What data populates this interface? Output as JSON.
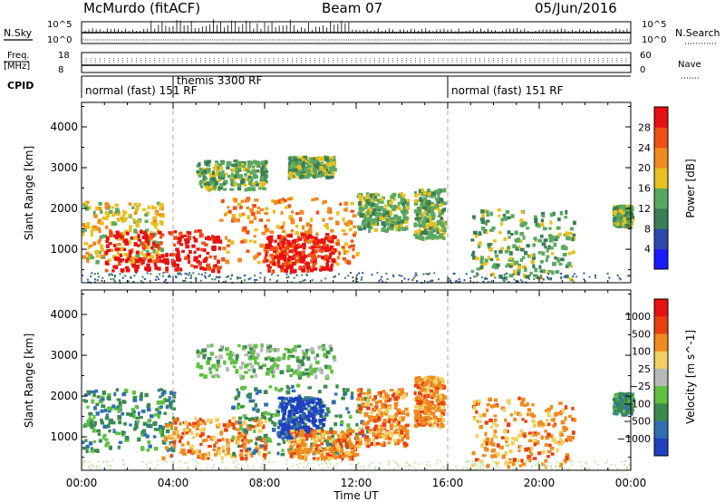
{
  "header": {
    "station": "McMurdo (fitACF)",
    "beam": "Beam 07",
    "date": "05/Jun/2016"
  },
  "summary": {
    "nsky_label": "N.Sky",
    "nsearch_label": "N.Search",
    "freq_label_1": "Freq.",
    "freq_label_2": "[MHz]",
    "nave_label": "Nave",
    "cpid_label": "CPID",
    "left_ticks_top": [
      "10^5",
      "10^0"
    ],
    "right_ticks_top": [
      "10^5",
      "10^0"
    ],
    "left_ticks_freq": [
      "18",
      "8"
    ],
    "right_ticks_nave": [
      "60",
      "0"
    ],
    "cpid_segments": [
      {
        "label": "normal (fast) 151 RF",
        "start_hour": 0
      },
      {
        "label": "themis 3300 RF",
        "start_hour": 4
      },
      {
        "label": "normal (fast) 151 RF",
        "start_hour": 16
      }
    ]
  },
  "axes": {
    "xlabel": "Time UT",
    "ylabel": "Slant Range [km]",
    "xticks": [
      "00:00",
      "04:00",
      "08:00",
      "12:00",
      "16:00",
      "20:00",
      "00:00"
    ],
    "yticks": [
      "1000",
      "2000",
      "3000",
      "4000"
    ]
  },
  "chart_data": [
    {
      "type": "heatmap",
      "title": "Power",
      "xlabel": "Time UT",
      "ylabel": "Slant Range [km]",
      "xlim": [
        0,
        24
      ],
      "ylim": [
        180,
        4600
      ],
      "colorbar_label": "Power [dB]",
      "colorbar_ticks": [
        "4",
        "8",
        "12",
        "16",
        "20",
        "24",
        "28"
      ],
      "colorbar_range": [
        0,
        32
      ],
      "colors": [
        "#1a1aff",
        "#2c4aa8",
        "#3a7d55",
        "#5aa860",
        "#e8c020",
        "#f08a20",
        "#f05018",
        "#e81010"
      ],
      "regions": [
        {
          "x": [
            0,
            3.5
          ],
          "y": [
            700,
            2200
          ],
          "level": 4
        },
        {
          "x": [
            1.0,
            6.0
          ],
          "y": [
            500,
            1500
          ],
          "level": 7
        },
        {
          "x": [
            6.0,
            12.0
          ],
          "y": [
            600,
            2300
          ],
          "level": 5
        },
        {
          "x": [
            8.0,
            11.0
          ],
          "y": [
            500,
            1400
          ],
          "level": 7
        },
        {
          "x": [
            5.0,
            8.0
          ],
          "y": [
            2500,
            3200
          ],
          "level": 3
        },
        {
          "x": [
            9.0,
            11.0
          ],
          "y": [
            2800,
            3300
          ],
          "level": 3
        },
        {
          "x": [
            12.0,
            14.2
          ],
          "y": [
            1500,
            2400
          ],
          "level": 3
        },
        {
          "x": [
            14.5,
            15.8
          ],
          "y": [
            1300,
            2500
          ],
          "level": 3
        },
        {
          "x": [
            17.0,
            21.5
          ],
          "y": [
            300,
            2000
          ],
          "level": 3
        },
        {
          "x": [
            23.2,
            24.0
          ],
          "y": [
            1600,
            2100
          ],
          "level": 3
        }
      ]
    },
    {
      "type": "heatmap",
      "title": "Velocity",
      "xlabel": "Time UT",
      "ylabel": "Slant Range [km]",
      "xlim": [
        0,
        24
      ],
      "ylim": [
        180,
        4600
      ],
      "colorbar_label": "Velocity [m s^-1]",
      "colorbar_ticks": [
        "1000",
        "500",
        "100",
        "25",
        "−25",
        "−100",
        "−500",
        "−1000"
      ],
      "colors": [
        "#2040c0",
        "#3070b0",
        "#3a8a50",
        "#60c040",
        "#b8b8b8",
        "#f0d060",
        "#f08a20",
        "#e84010",
        "#e81010"
      ],
      "regions": [
        {
          "x": [
            0,
            4.0
          ],
          "y": [
            700,
            2200
          ],
          "level": 2
        },
        {
          "x": [
            3.5,
            8.0
          ],
          "y": [
            500,
            1500
          ],
          "level": 6
        },
        {
          "x": [
            6.5,
            12.5
          ],
          "y": [
            600,
            2300
          ],
          "level": 2
        },
        {
          "x": [
            8.5,
            10.5
          ],
          "y": [
            1000,
            2000
          ],
          "level": 0
        },
        {
          "x": [
            9.0,
            12.0
          ],
          "y": [
            500,
            1200
          ],
          "level": 6
        },
        {
          "x": [
            12.0,
            14.2
          ],
          "y": [
            800,
            2200
          ],
          "level": 6
        },
        {
          "x": [
            14.5,
            15.8
          ],
          "y": [
            1300,
            2500
          ],
          "level": 6
        },
        {
          "x": [
            17.0,
            21.5
          ],
          "y": [
            300,
            2000
          ],
          "level": 6
        },
        {
          "x": [
            5.0,
            11.0
          ],
          "y": [
            2500,
            3300
          ],
          "level": 3
        },
        {
          "x": [
            23.2,
            24.0
          ],
          "y": [
            1600,
            2100
          ],
          "level": 2
        }
      ]
    }
  ]
}
